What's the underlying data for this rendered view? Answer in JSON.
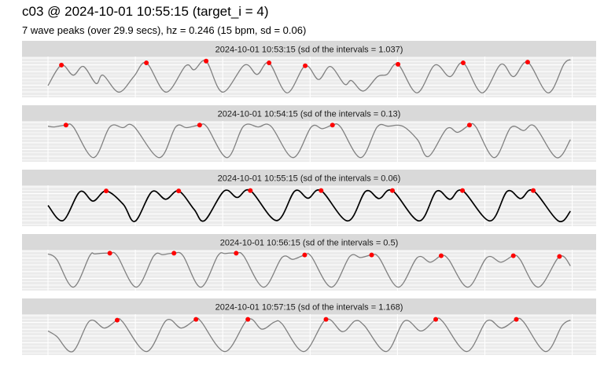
{
  "title": "c03 @ 2024-10-01 10:55:15 (target_i = 4)",
  "subtitle": "7 wave peaks (over 29.9 secs), hz = 0.246 (15 bpm, sd = 0.06)",
  "colors": {
    "line": "#808080",
    "target_line": "#000000",
    "peak": "#ff0000",
    "strip": "#d9d9d9",
    "panel": "#ebebeb",
    "grid": "#ffffff"
  },
  "chart_data": [
    {
      "type": "line",
      "strip": "2024-10-01 10:53:15 (sd of the intervals = 1.037)",
      "target": false,
      "xlim": [
        0,
        30
      ],
      "grid": true,
      "curve": [
        [
          0,
          0.26
        ],
        [
          0.77,
          0.83
        ],
        [
          1.44,
          0.55
        ],
        [
          2.03,
          0.79
        ],
        [
          2.75,
          0.32
        ],
        [
          3.15,
          0.55
        ],
        [
          4.05,
          0.08
        ],
        [
          4.91,
          0.51
        ],
        [
          5.63,
          0.89
        ],
        [
          6.75,
          0.08
        ],
        [
          7.88,
          0.81
        ],
        [
          8.37,
          0.7
        ],
        [
          9.05,
          0.94
        ],
        [
          9.99,
          0.08
        ],
        [
          11.25,
          0.83
        ],
        [
          11.97,
          0.57
        ],
        [
          12.65,
          0.89
        ],
        [
          13.68,
          0.06
        ],
        [
          14.72,
          0.81
        ],
        [
          15.48,
          0.43
        ],
        [
          16.16,
          0.79
        ],
        [
          16.97,
          0.3
        ],
        [
          17.37,
          0.4
        ],
        [
          18.05,
          0.11
        ],
        [
          18.86,
          0.51
        ],
        [
          19.4,
          0.57
        ],
        [
          20.03,
          0.85
        ],
        [
          21.11,
          0.06
        ],
        [
          22.14,
          0.83
        ],
        [
          23.0,
          0.51
        ],
        [
          23.76,
          0.89
        ],
        [
          24.84,
          0.06
        ],
        [
          25.92,
          0.85
        ],
        [
          26.64,
          0.51
        ],
        [
          27.45,
          0.91
        ],
        [
          28.62,
          0.06
        ],
        [
          29.52,
          0.85
        ],
        [
          29.9,
          0.98
        ]
      ],
      "peaks": [
        [
          0.77,
          0.83
        ],
        [
          5.63,
          0.89
        ],
        [
          9.05,
          0.94
        ],
        [
          12.65,
          0.89
        ],
        [
          14.72,
          0.81
        ],
        [
          20.03,
          0.85
        ],
        [
          23.76,
          0.89
        ],
        [
          27.45,
          0.91
        ]
      ]
    },
    {
      "type": "line",
      "strip": "2024-10-01 10:54:15 (sd of the intervals = 0.13)",
      "target": false,
      "xlim": [
        0,
        30
      ],
      "grid": true,
      "curve": [
        [
          0,
          0.92
        ],
        [
          0.36,
          0.9
        ],
        [
          1.03,
          0.95
        ],
        [
          1.45,
          0.9
        ],
        [
          2.6,
          0.05
        ],
        [
          3.54,
          0.9
        ],
        [
          4.28,
          0.88
        ],
        [
          4.9,
          0.92
        ],
        [
          6.37,
          0.05
        ],
        [
          7.31,
          0.9
        ],
        [
          7.94,
          0.88
        ],
        [
          8.68,
          0.95
        ],
        [
          9.1,
          0.9
        ],
        [
          10.25,
          0.05
        ],
        [
          11.19,
          0.92
        ],
        [
          12.03,
          0.9
        ],
        [
          12.76,
          0.92
        ],
        [
          14.02,
          0.05
        ],
        [
          15.07,
          0.9
        ],
        [
          15.7,
          0.85
        ],
        [
          16.28,
          0.95
        ],
        [
          16.74,
          0.9
        ],
        [
          17.89,
          0.05
        ],
        [
          18.84,
          0.9
        ],
        [
          19.47,
          0.92
        ],
        [
          20.3,
          0.92
        ],
        [
          21.14,
          0.55
        ],
        [
          21.77,
          0.08
        ],
        [
          22.82,
          0.85
        ],
        [
          23.45,
          0.75
        ],
        [
          24.12,
          0.95
        ],
        [
          24.49,
          0.9
        ],
        [
          25.54,
          0.05
        ],
        [
          26.48,
          0.88
        ],
        [
          27.22,
          0.8
        ],
        [
          27.85,
          0.92
        ],
        [
          29.1,
          0.05
        ],
        [
          29.9,
          0.55
        ]
      ],
      "peaks": [
        [
          1.03,
          0.95
        ],
        [
          8.68,
          0.95
        ],
        [
          16.28,
          0.95
        ],
        [
          24.12,
          0.95
        ]
      ]
    },
    {
      "type": "line",
      "strip": "2024-10-01 10:55:15 (sd of the intervals = 0.06)",
      "target": true,
      "xlim": [
        0,
        30
      ],
      "grid": true,
      "curve": [
        [
          0,
          0.51
        ],
        [
          0.86,
          0.09
        ],
        [
          1.83,
          0.89
        ],
        [
          2.58,
          0.63
        ],
        [
          3.33,
          0.91
        ],
        [
          4.31,
          0.54
        ],
        [
          4.98,
          0.07
        ],
        [
          5.95,
          0.89
        ],
        [
          6.74,
          0.68
        ],
        [
          7.48,
          0.91
        ],
        [
          8.36,
          0.4
        ],
        [
          8.96,
          0.09
        ],
        [
          10.08,
          0.91
        ],
        [
          10.83,
          0.73
        ],
        [
          11.58,
          0.92
        ],
        [
          13.08,
          0.09
        ],
        [
          14.13,
          0.91
        ],
        [
          14.88,
          0.71
        ],
        [
          15.63,
          0.92
        ],
        [
          17.15,
          0.08
        ],
        [
          18.18,
          0.9
        ],
        [
          18.95,
          0.7
        ],
        [
          19.71,
          0.92
        ],
        [
          21.24,
          0.08
        ],
        [
          22.23,
          0.9
        ],
        [
          23.0,
          0.68
        ],
        [
          23.72,
          0.92
        ],
        [
          25.29,
          0.08
        ],
        [
          26.28,
          0.9
        ],
        [
          27.05,
          0.7
        ],
        [
          27.77,
          0.92
        ],
        [
          29.21,
          0.08
        ],
        [
          29.9,
          0.35
        ]
      ],
      "peaks": [
        [
          3.33,
          0.91
        ],
        [
          7.48,
          0.91
        ],
        [
          11.58,
          0.92
        ],
        [
          15.63,
          0.92
        ],
        [
          19.71,
          0.92
        ],
        [
          23.72,
          0.92
        ],
        [
          27.77,
          0.92
        ]
      ]
    },
    {
      "type": "line",
      "strip": "2024-10-01 10:56:15 (sd of the intervals = 0.5)",
      "target": false,
      "xlim": [
        0,
        30
      ],
      "grid": true,
      "curve": [
        [
          0,
          0.95
        ],
        [
          0.5,
          0.8
        ],
        [
          1.45,
          0.03
        ],
        [
          2.39,
          0.9
        ],
        [
          2.7,
          0.95
        ],
        [
          3.54,
          0.97
        ],
        [
          3.96,
          0.9
        ],
        [
          5.05,
          0.03
        ],
        [
          6.06,
          0.9
        ],
        [
          6.58,
          0.93
        ],
        [
          7.21,
          0.97
        ],
        [
          7.73,
          0.9
        ],
        [
          8.74,
          0.03
        ],
        [
          9.72,
          0.9
        ],
        [
          10.14,
          0.96
        ],
        [
          10.77,
          0.97
        ],
        [
          11.19,
          0.9
        ],
        [
          12.34,
          0.03
        ],
        [
          13.39,
          0.85
        ],
        [
          14.02,
          0.8
        ],
        [
          14.69,
          0.92
        ],
        [
          15.07,
          0.88
        ],
        [
          16.22,
          0.03
        ],
        [
          17.27,
          0.88
        ],
        [
          17.89,
          0.85
        ],
        [
          18.52,
          0.92
        ],
        [
          18.94,
          0.85
        ],
        [
          20.05,
          0.03
        ],
        [
          21.14,
          0.85
        ],
        [
          21.88,
          0.72
        ],
        [
          22.5,
          0.9
        ],
        [
          22.92,
          0.8
        ],
        [
          24.03,
          0.03
        ],
        [
          25.12,
          0.85
        ],
        [
          25.92,
          0.72
        ],
        [
          26.63,
          0.9
        ],
        [
          27.01,
          0.8
        ],
        [
          28.06,
          0.03
        ],
        [
          29.27,
          0.88
        ],
        [
          29.9,
          0.62
        ]
      ],
      "peaks": [
        [
          3.54,
          0.97
        ],
        [
          7.21,
          0.97
        ],
        [
          10.77,
          0.97
        ],
        [
          14.69,
          0.92
        ],
        [
          18.52,
          0.92
        ],
        [
          22.5,
          0.9
        ],
        [
          26.63,
          0.9
        ],
        [
          29.27,
          0.88
        ]
      ]
    },
    {
      "type": "line",
      "strip": "2024-10-01 10:57:15 (sd of the intervals = 1.168)",
      "target": false,
      "xlim": [
        0,
        30
      ],
      "grid": true,
      "curve": [
        [
          0,
          0.6
        ],
        [
          0.5,
          0.45
        ],
        [
          1.41,
          0.03
        ],
        [
          2.39,
          0.88
        ],
        [
          3.23,
          0.68
        ],
        [
          3.96,
          0.9
        ],
        [
          4.28,
          0.85
        ],
        [
          5.64,
          0.03
        ],
        [
          6.79,
          0.9
        ],
        [
          7.63,
          0.68
        ],
        [
          8.47,
          0.92
        ],
        [
          8.78,
          0.85
        ],
        [
          10.14,
          0.03
        ],
        [
          11.44,
          0.92
        ],
        [
          12.24,
          0.65
        ],
        [
          12.97,
          0.85
        ],
        [
          13.39,
          0.8
        ],
        [
          14.65,
          0.03
        ],
        [
          15.91,
          0.92
        ],
        [
          16.85,
          0.58
        ],
        [
          17.58,
          0.88
        ],
        [
          18.1,
          0.75
        ],
        [
          19.36,
          0.03
        ],
        [
          20.41,
          0.88
        ],
        [
          21.35,
          0.6
        ],
        [
          22.19,
          0.92
        ],
        [
          22.61,
          0.85
        ],
        [
          23.97,
          0.03
        ],
        [
          25.12,
          0.88
        ],
        [
          25.96,
          0.68
        ],
        [
          26.8,
          0.92
        ],
        [
          27.22,
          0.85
        ],
        [
          28.48,
          0.03
        ],
        [
          29.42,
          0.75
        ],
        [
          29.9,
          0.9
        ]
      ],
      "peaks": [
        [
          3.96,
          0.9
        ],
        [
          8.47,
          0.92
        ],
        [
          11.44,
          0.92
        ],
        [
          15.91,
          0.92
        ],
        [
          22.19,
          0.92
        ],
        [
          26.8,
          0.92
        ]
      ]
    }
  ]
}
